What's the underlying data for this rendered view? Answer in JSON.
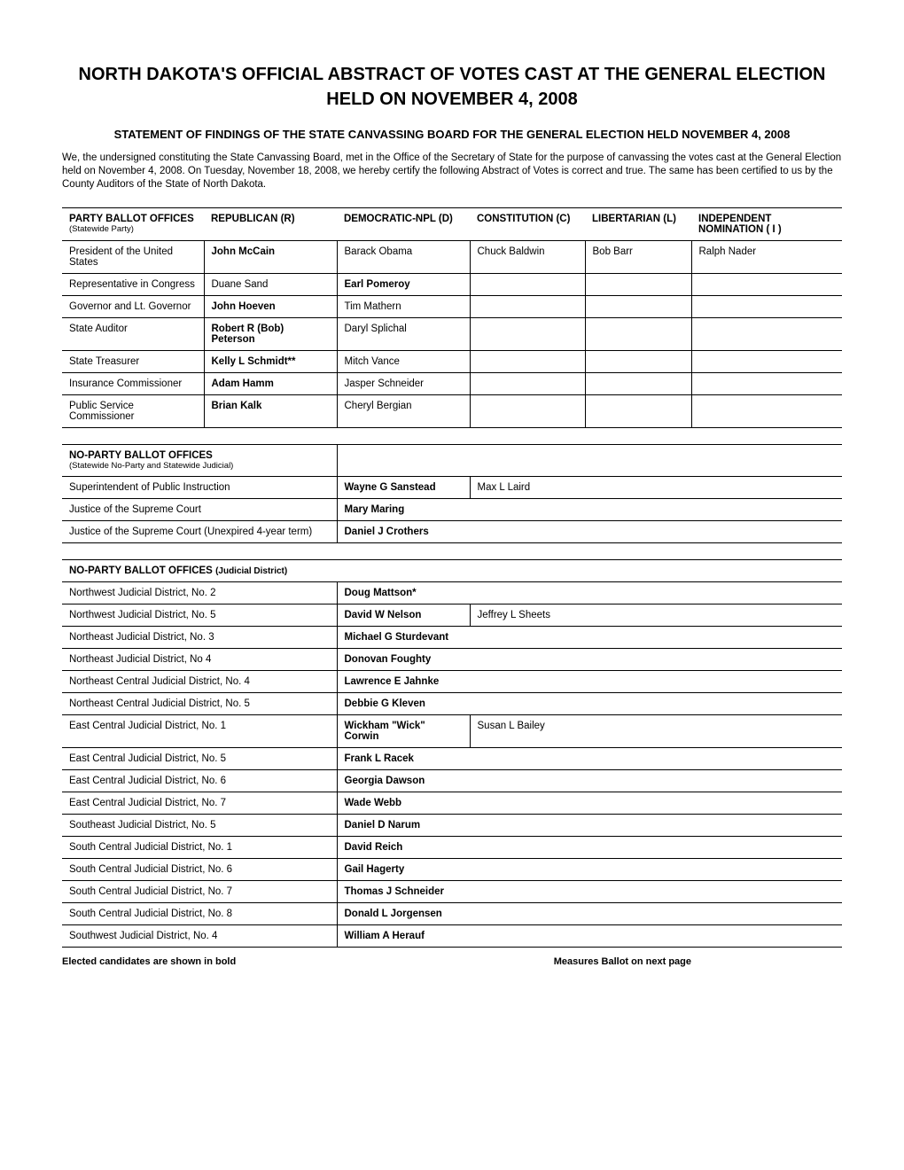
{
  "title": "NORTH DAKOTA'S OFFICIAL ABSTRACT OF VOTES CAST AT THE GENERAL ELECTION HELD ON NOVEMBER 4, 2008",
  "subtitle": "STATEMENT OF FINDINGS OF THE STATE CANVASSING BOARD FOR THE GENERAL ELECTION HELD NOVEMBER 4, 2008",
  "intro": "We, the undersigned constituting the State Canvassing Board, met in the Office of the Secretary of State for the purpose of canvassing the votes cast at the General Election held on November 4, 2008.  On Tuesday, November 18, 2008, we hereby certify the following Abstract of Votes is correct and true.  The same has been certified to us by the County Auditors of the State of North Dakota.",
  "party_table": {
    "header": {
      "c1": "PARTY BALLOT OFFICES",
      "c1_sub": "(Statewide Party)",
      "c2": "REPUBLICAN (R)",
      "c3": "DEMOCRATIC-NPL (D)",
      "c4": "CONSTITUTION (C)",
      "c5": "LIBERTARIAN (L)",
      "c6": "INDEPENDENT NOMINATION ( I )"
    },
    "rows": [
      {
        "office": "President of the United States",
        "r": "John McCain",
        "r_bold": true,
        "d": "Barack Obama",
        "c": "Chuck Baldwin",
        "l": "Bob Barr",
        "i": "Ralph Nader"
      },
      {
        "office": "Representative in Congress",
        "r": "Duane Sand",
        "d": "Earl Pomeroy",
        "d_bold": true,
        "c": "",
        "l": "",
        "i": ""
      },
      {
        "office": "Governor and Lt. Governor",
        "r": "John Hoeven",
        "r_bold": true,
        "d": "Tim Mathern",
        "c": "",
        "l": "",
        "i": ""
      },
      {
        "office": "State Auditor",
        "r": "Robert R (Bob) Peterson",
        "r_bold": true,
        "d": "Daryl Splichal",
        "c": "",
        "l": "",
        "i": ""
      },
      {
        "office": "State Treasurer",
        "r": "Kelly L Schmidt**",
        "r_bold": true,
        "d": "Mitch Vance",
        "c": "",
        "l": "",
        "i": ""
      },
      {
        "office": "Insurance Commissioner",
        "r": "Adam Hamm",
        "r_bold": true,
        "d": "Jasper Schneider",
        "c": "",
        "l": "",
        "i": ""
      },
      {
        "office": "Public Service Commissioner",
        "r": "Brian Kalk",
        "r_bold": true,
        "d": "Cheryl Bergian",
        "c": "",
        "l": "",
        "i": ""
      }
    ]
  },
  "np_table": {
    "header": "NO-PARTY BALLOT OFFICES",
    "header_sub": "(Statewide No-Party and Statewide Judicial)",
    "rows": [
      {
        "office": "Superintendent of Public Instruction",
        "c1": "Wayne G Sanstead",
        "c1_bold": true,
        "c2": "Max L Laird",
        "c2_sep": true
      },
      {
        "office": "Justice of the Supreme Court",
        "c1": "Mary Maring",
        "c1_bold": true,
        "c2": ""
      },
      {
        "office": "Justice of the Supreme Court (Unexpired 4-year term)",
        "c1": "Daniel J Crothers",
        "c1_bold": true,
        "c2": ""
      }
    ]
  },
  "jd_table": {
    "header": "NO-PARTY BALLOT OFFICES",
    "header_sub": "(Judicial District)",
    "rows": [
      {
        "office": "Northwest Judicial District, No. 2",
        "c1": "Doug Mattson*",
        "c1_bold": true,
        "c2": ""
      },
      {
        "office": "Northwest Judicial District, No. 5",
        "c1": "David W Nelson",
        "c1_bold": true,
        "c2": "Jeffrey L Sheets",
        "c2_sep": true
      },
      {
        "office": "Northeast Judicial District, No. 3",
        "c1": "Michael G Sturdevant",
        "c1_bold": true,
        "c2": ""
      },
      {
        "office": "Northeast Judicial District, No 4",
        "c1": "Donovan Foughty",
        "c1_bold": true,
        "c2": ""
      },
      {
        "office": "Northeast Central Judicial District, No. 4",
        "c1": "Lawrence E Jahnke",
        "c1_bold": true,
        "c2": ""
      },
      {
        "office": "Northeast Central Judicial District, No. 5",
        "c1": "Debbie G Kleven",
        "c1_bold": true,
        "c2": ""
      },
      {
        "office": "East Central Judicial District, No. 1",
        "c1": "Wickham \"Wick\" Corwin",
        "c1_bold": true,
        "c2": "Susan L Bailey",
        "c2_sep": true
      },
      {
        "office": "East Central Judicial District, No. 5",
        "c1": "Frank L Racek",
        "c1_bold": true,
        "c2": ""
      },
      {
        "office": "East Central Judicial District, No. 6",
        "c1": "Georgia Dawson",
        "c1_bold": true,
        "c2": ""
      },
      {
        "office": "East Central Judicial District, No. 7",
        "c1": "Wade Webb",
        "c1_bold": true,
        "c2": ""
      },
      {
        "office": "Southeast Judicial District, No. 5",
        "c1": "Daniel D Narum",
        "c1_bold": true,
        "c2": ""
      },
      {
        "office": "South Central Judicial District, No. 1",
        "c1": "David Reich",
        "c1_bold": true,
        "c2": ""
      },
      {
        "office": "South Central Judicial District, No. 6",
        "c1": "Gail Hagerty",
        "c1_bold": true,
        "c2": ""
      },
      {
        "office": "South Central Judicial District, No. 7",
        "c1": "Thomas J Schneider",
        "c1_bold": true,
        "c2": ""
      },
      {
        "office": "South Central Judicial District, No. 8",
        "c1": "Donald L Jorgensen",
        "c1_bold": true,
        "c2": ""
      },
      {
        "office": "Southwest Judicial District, No. 4",
        "c1": "William A Herauf",
        "c1_bold": true,
        "c2": ""
      }
    ]
  },
  "footer": {
    "left": "Elected candidates are shown in bold",
    "right": "Measures Ballot on next page"
  }
}
